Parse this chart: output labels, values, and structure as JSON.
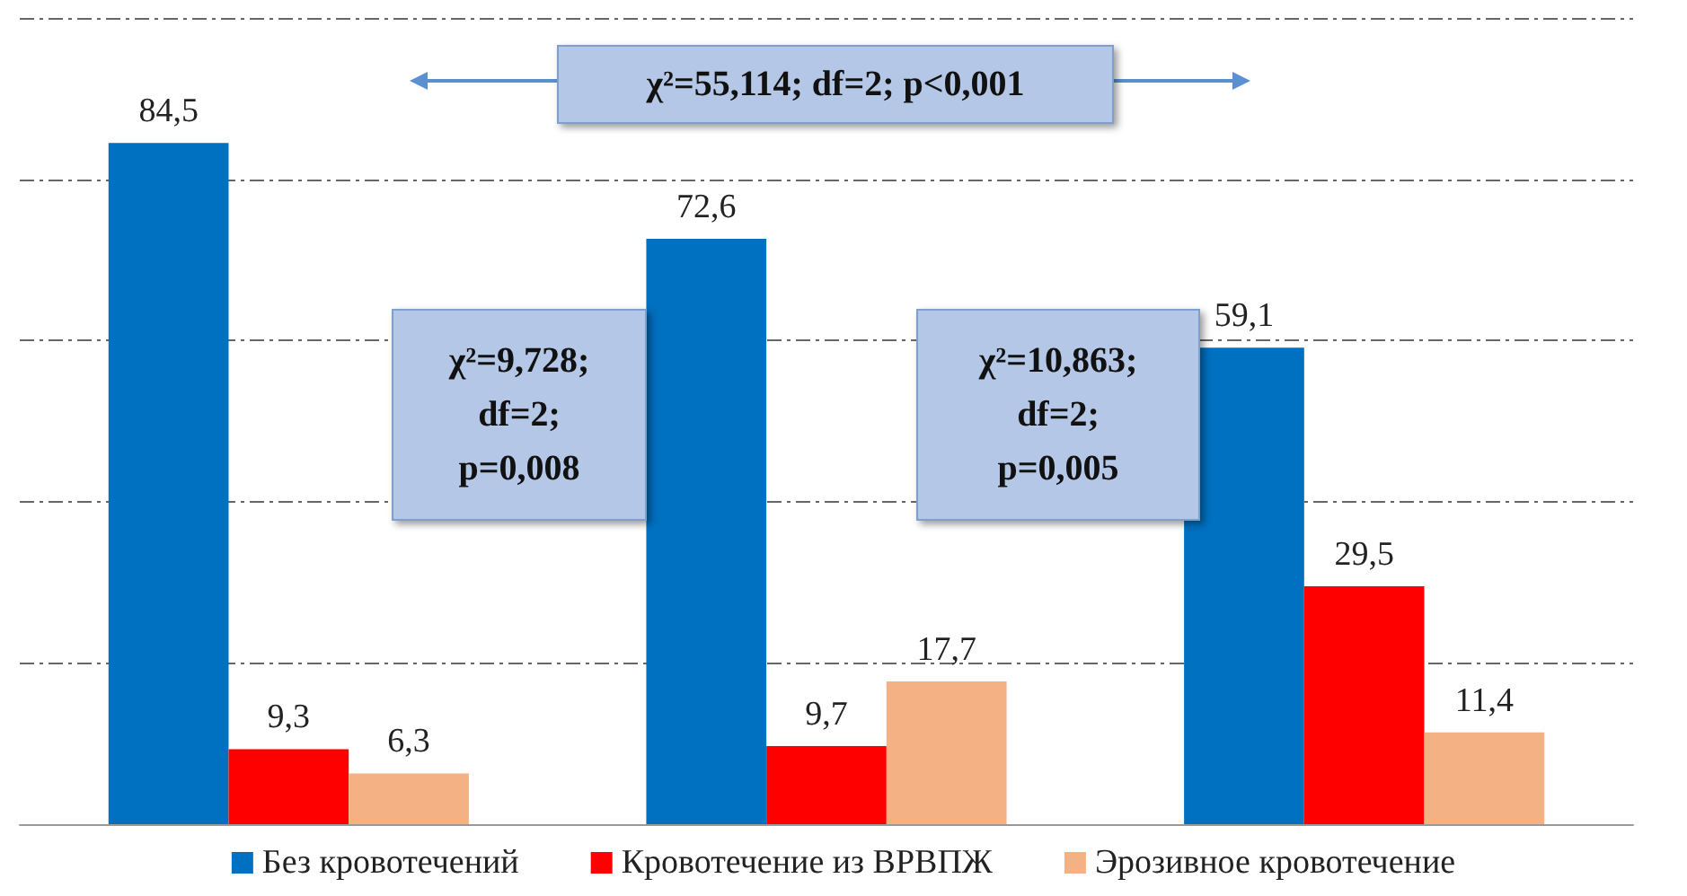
{
  "chart_data": {
    "type": "bar",
    "categories": [
      null,
      null,
      null
    ],
    "series": [
      {
        "name": "Без кровотечений",
        "color": "#0070c0",
        "values": [
          84.5,
          72.6,
          59.1
        ],
        "value_labels": [
          "84,5",
          "72,6",
          "59,1"
        ]
      },
      {
        "name": "Кровотечение из ВРВПЖ",
        "color": "#ff0000",
        "values": [
          9.3,
          9.7,
          29.5
        ],
        "value_labels": [
          "9,3",
          "9,7",
          "29,5"
        ]
      },
      {
        "name": "Эрозивное кровотечение",
        "color": "#f4b183",
        "values": [
          6.3,
          17.7,
          11.4
        ],
        "value_labels": [
          "6,3",
          "17,7",
          "11,4"
        ]
      }
    ],
    "ylim": [
      0,
      100
    ],
    "yticks": [
      {
        "value": 0,
        "label": null
      },
      {
        "value": 20,
        "label": null
      },
      {
        "value": 40,
        "label": null
      },
      {
        "value": 60,
        "label": null
      },
      {
        "value": 80,
        "label": null
      },
      {
        "value": 100,
        "label": null
      }
    ],
    "grid": "y",
    "legend": "bottom",
    "annotations": [
      "χ²=55,114; df=2; p<0,001",
      "χ²=9,728;\ndf=2;\np=0,008",
      "χ²=10,863;\ndf=2;\np=0,005"
    ]
  }
}
